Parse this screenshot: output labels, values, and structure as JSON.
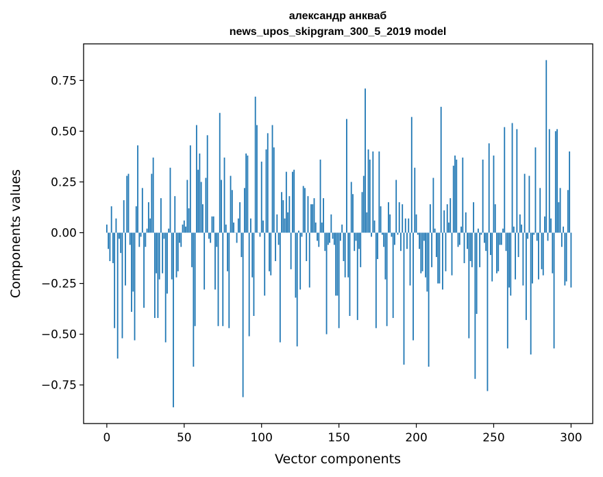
{
  "chart_data": {
    "type": "bar",
    "title": "александр анкваб",
    "subtitle": "news_upos_skipgram_300_5_2019 model",
    "xlabel": "Vector components",
    "ylabel": "Components values",
    "xlim": [
      -15,
      314
    ],
    "ylim": [
      -0.94,
      0.93
    ],
    "xticks": [
      0,
      50,
      100,
      150,
      200,
      250,
      300
    ],
    "xtick_labels": [
      "0",
      "50",
      "100",
      "150",
      "200",
      "250",
      "300"
    ],
    "yticks": [
      0.75,
      0.5,
      0.25,
      0.0,
      -0.25,
      -0.5,
      -0.75
    ],
    "ytick_labels": [
      "0.75",
      "0.50",
      "0.25",
      "0.00",
      "−0.25",
      "−0.50",
      "−0.75"
    ],
    "grid": false,
    "series": [
      {
        "name": "components",
        "color": "#1f77b4",
        "values": [
          0.04,
          -0.08,
          -0.14,
          0.13,
          -0.15,
          -0.47,
          0.07,
          -0.62,
          -0.03,
          -0.1,
          -0.52,
          0.16,
          -0.26,
          0.28,
          0.29,
          -0.06,
          -0.39,
          -0.29,
          -0.53,
          0.13,
          0.43,
          -0.07,
          -0.02,
          0.22,
          -0.37,
          -0.07,
          0.02,
          0.15,
          0.07,
          0.29,
          0.37,
          -0.42,
          -0.2,
          -0.42,
          -0.23,
          0.17,
          -0.2,
          -0.03,
          -0.54,
          -0.3,
          0.02,
          0.32,
          -0.23,
          -0.86,
          0.18,
          -0.22,
          -0.19,
          -0.05,
          -0.07,
          0.04,
          0.06,
          0.03,
          0.26,
          0.12,
          0.43,
          -0.17,
          -0.66,
          -0.46,
          0.53,
          0.31,
          0.39,
          0.25,
          0.14,
          -0.28,
          0.27,
          0.48,
          -0.03,
          -0.05,
          0.08,
          0.08,
          -0.28,
          -0.07,
          -0.46,
          0.59,
          0.26,
          -0.46,
          0.37,
          0.04,
          -0.19,
          -0.47,
          0.28,
          0.21,
          0.05,
          0.0,
          -0.05,
          0.07,
          0.15,
          -0.12,
          -0.81,
          0.22,
          0.39,
          0.38,
          -0.51,
          0.07,
          -0.22,
          -0.41,
          0.67,
          0.53,
          0.0,
          -0.02,
          0.35,
          0.06,
          -0.31,
          0.41,
          0.49,
          -0.19,
          -0.21,
          0.53,
          0.42,
          -0.14,
          0.09,
          -0.06,
          -0.54,
          0.2,
          0.16,
          0.07,
          0.3,
          0.1,
          0.18,
          -0.18,
          0.3,
          0.31,
          -0.32,
          -0.56,
          0.01,
          -0.28,
          -0.02,
          0.23,
          0.22,
          -0.14,
          0.18,
          -0.27,
          0.14,
          0.14,
          0.17,
          0.05,
          -0.04,
          -0.07,
          0.36,
          0.05,
          0.17,
          -0.09,
          -0.5,
          -0.06,
          -0.05,
          0.09,
          -0.03,
          -0.06,
          -0.31,
          -0.31,
          -0.47,
          -0.04,
          0.04,
          -0.14,
          -0.22,
          0.56,
          -0.22,
          -0.41,
          0.25,
          0.19,
          -0.09,
          -0.04,
          -0.43,
          -0.08,
          -0.17,
          0.2,
          0.28,
          0.71,
          0.1,
          0.41,
          0.36,
          -0.02,
          0.4,
          0.06,
          -0.47,
          -0.13,
          0.4,
          0.13,
          -0.01,
          -0.07,
          -0.23,
          -0.46,
          0.15,
          0.09,
          -0.02,
          -0.42,
          -0.06,
          0.26,
          -0.01,
          0.15,
          -0.09,
          0.14,
          -0.65,
          0.07,
          -0.08,
          0.07,
          -0.26,
          0.57,
          -0.53,
          0.32,
          0.09,
          -0.01,
          -0.08,
          -0.2,
          -0.19,
          -0.04,
          -0.22,
          -0.29,
          -0.66,
          0.14,
          -0.17,
          0.27,
          0.02,
          -0.12,
          -0.25,
          -0.25,
          0.62,
          -0.28,
          0.11,
          -0.19,
          0.14,
          0.05,
          0.17,
          -0.21,
          0.33,
          0.38,
          0.36,
          -0.07,
          -0.06,
          0.03,
          0.37,
          -0.15,
          0.1,
          -0.08,
          -0.52,
          -0.14,
          -0.17,
          0.15,
          -0.72,
          -0.4,
          0.02,
          -0.17,
          -0.01,
          0.36,
          -0.05,
          -0.09,
          -0.78,
          0.44,
          -0.11,
          -0.24,
          0.38,
          0.14,
          -0.2,
          -0.19,
          -0.06,
          -0.06,
          0.02,
          0.52,
          -0.09,
          -0.57,
          -0.27,
          -0.31,
          0.54,
          0.03,
          -0.23,
          0.51,
          -0.12,
          0.09,
          0.04,
          -0.26,
          0.29,
          -0.43,
          -0.03,
          0.28,
          -0.6,
          -0.25,
          -0.01,
          0.42,
          -0.04,
          -0.23,
          0.22,
          -0.18,
          -0.21,
          0.08,
          0.85,
          -0.04,
          0.51,
          0.07,
          -0.2,
          -0.57,
          0.5,
          0.51,
          0.15,
          0.22,
          -0.07,
          0.03,
          -0.26,
          -0.24,
          0.21,
          0.4,
          -0.27
        ]
      }
    ]
  }
}
